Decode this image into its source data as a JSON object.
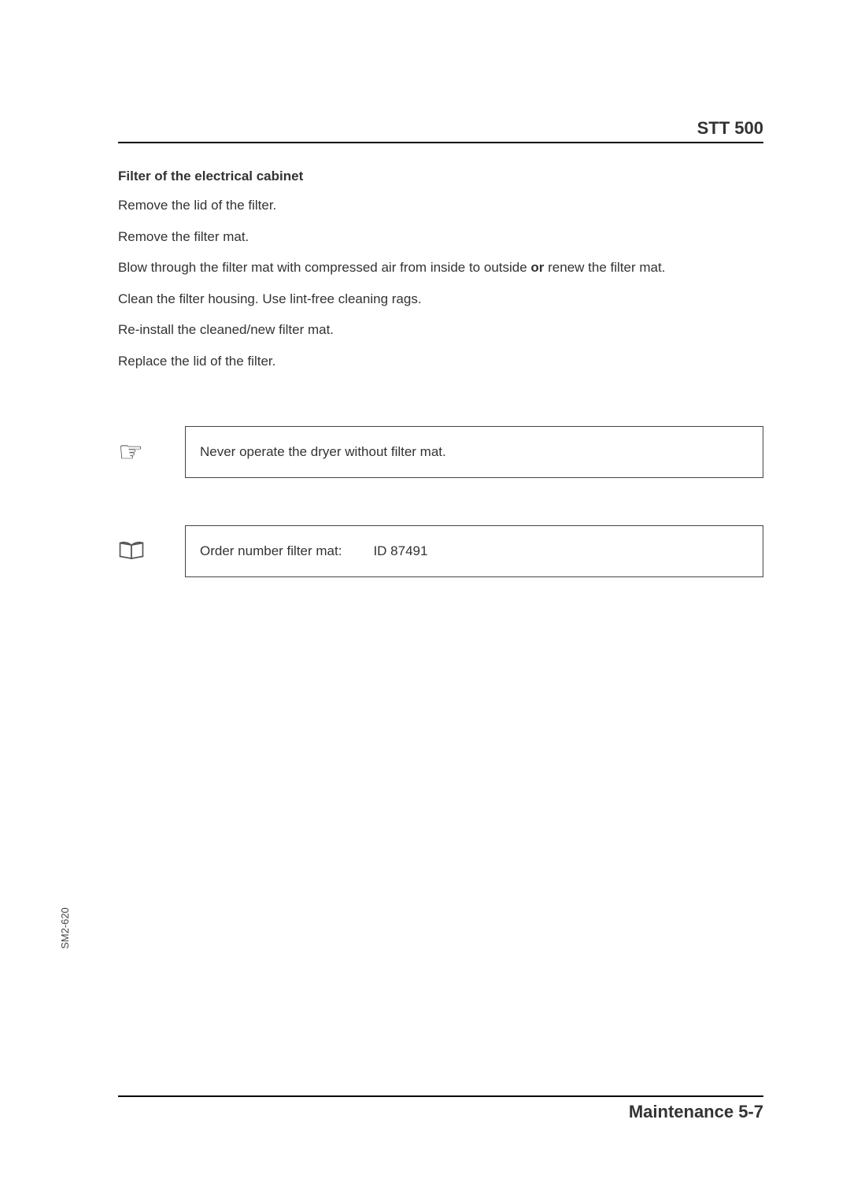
{
  "header": {
    "title": "STT 500"
  },
  "section": {
    "title": "Filter of the electrical cabinet",
    "steps": [
      "Remove the lid of the filter.",
      "Remove the filter mat.",
      "Blow through the filter mat with compressed air from inside to outside <b>or</b> renew the filter mat.",
      "Clean the filter housing. Use lint-free cleaning rags.",
      "Re-install the cleaned/new filter mat.",
      "Replace the lid of the filter."
    ]
  },
  "notes": {
    "warning": "Never operate the dryer without filter mat.",
    "order_label": "Order number filter mat:",
    "order_value": "ID 87491"
  },
  "footer": {
    "text": "Maintenance 5-7"
  },
  "side_label": "SM2-620"
}
